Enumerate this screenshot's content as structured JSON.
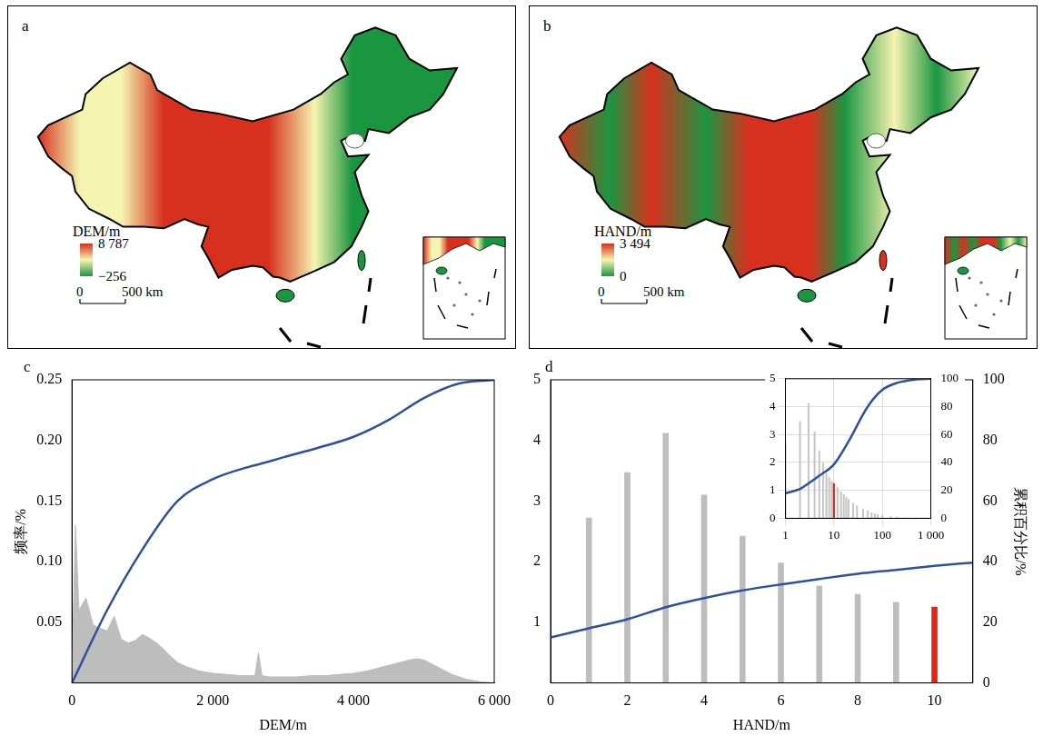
{
  "maps": [
    {
      "letter": "a",
      "colorbar": {
        "label": "DEM/m",
        "range": [
          -256,
          8787
        ],
        "ticks": [
          {
            "value": 8787,
            "label": "8 787"
          },
          {
            "value": -256,
            "label": "−256"
          }
        ],
        "colors": [
          "#1a9641",
          "#f5f3b0",
          "#d7301f"
        ]
      },
      "scale_bar": {
        "ticks": [
          {
            "value": 0,
            "label": "0"
          },
          {
            "value": 500,
            "label": "500 km"
          }
        ]
      }
    },
    {
      "letter": "b",
      "colorbar": {
        "label": "HAND/m",
        "range": [
          0,
          3494
        ],
        "ticks": [
          {
            "value": 3494,
            "label": "3 494"
          },
          {
            "value": 0,
            "label": "0"
          }
        ],
        "colors": [
          "#1a9641",
          "#f5f3b0",
          "#d7301f"
        ]
      },
      "scale_bar": {
        "ticks": [
          {
            "value": 0,
            "label": "0"
          },
          {
            "value": 500,
            "label": "500 km"
          }
        ]
      }
    }
  ],
  "chart_data": [
    {
      "letter": "c",
      "type": "line",
      "xlabel": "DEM/m",
      "ylabel": "频率/%",
      "xlim": [
        0,
        6000
      ],
      "xticks": [
        0,
        {
          "value": 2000,
          "label": "2 000"
        },
        {
          "value": 4000,
          "label": "4 000"
        },
        {
          "value": 6000,
          "label": "6 000"
        }
      ],
      "ylim": [
        0,
        0.25
      ],
      "yticks": [
        0.05,
        {
          "value": 0.1,
          "label": "0.10"
        },
        0.15,
        {
          "value": 0.2,
          "label": "0.20"
        },
        0.25
      ],
      "grid": false,
      "series": [
        {
          "type": "area",
          "color": "#bdbdbd",
          "x": [
            0,
            50,
            100,
            200,
            300,
            400,
            500,
            600,
            700,
            800,
            900,
            1000,
            1100,
            1200,
            1300,
            1400,
            1500,
            1600,
            1700,
            1800,
            1900,
            2000,
            2200,
            2400,
            2600,
            2650,
            2700,
            2800,
            3000,
            3200,
            3400,
            3600,
            3800,
            4000,
            4200,
            4400,
            4600,
            4800,
            4900,
            5000,
            5100,
            5200,
            5400,
            5600,
            5800,
            6000
          ],
          "values": [
            0.01,
            0.13,
            0.06,
            0.07,
            0.048,
            0.045,
            0.043,
            0.055,
            0.036,
            0.033,
            0.035,
            0.04,
            0.037,
            0.033,
            0.028,
            0.022,
            0.017,
            0.014,
            0.012,
            0.01,
            0.009,
            0.008,
            0.007,
            0.006,
            0.006,
            0.025,
            0.006,
            0.005,
            0.005,
            0.005,
            0.006,
            0.006,
            0.007,
            0.008,
            0.01,
            0.013,
            0.016,
            0.019,
            0.02,
            0.019,
            0.016,
            0.013,
            0.007,
            0.003,
            0.001,
            0
          ]
        },
        {
          "type": "line",
          "color": "#2f4fa0",
          "x": [
            0,
            500,
            1000,
            1500,
            2000,
            2500,
            2700,
            3000,
            3500,
            4000,
            4500,
            5000,
            5500,
            6000
          ],
          "values": [
            0,
            0.06,
            0.11,
            0.15,
            0.168,
            0.178,
            0.181,
            0.186,
            0.194,
            0.203,
            0.217,
            0.235,
            0.247,
            0.25
          ]
        }
      ]
    },
    {
      "letter": "d",
      "type": "bar",
      "xlabel": "HAND/m",
      "y2label": "累积百分比/%",
      "xlim": [
        0,
        11
      ],
      "xticks": [
        0,
        2,
        4,
        6,
        8,
        10
      ],
      "ylim": [
        0,
        5
      ],
      "yticks": [
        1,
        2,
        3,
        4,
        5
      ],
      "y2lim": [
        0,
        100
      ],
      "y2ticks": [
        0,
        20,
        40,
        60,
        80,
        100
      ],
      "grid": false,
      "series": [
        {
          "type": "bar",
          "x": [
            1,
            2,
            3,
            4,
            5,
            6,
            7,
            8,
            9,
            10
          ],
          "values": [
            2.72,
            3.47,
            4.12,
            3.1,
            2.42,
            1.98,
            1.6,
            1.46,
            1.33,
            1.25
          ],
          "colors": [
            "#bdbdbd",
            "#bdbdbd",
            "#bdbdbd",
            "#bdbdbd",
            "#bdbdbd",
            "#bdbdbd",
            "#bdbdbd",
            "#bdbdbd",
            "#bdbdbd",
            "#e0261b"
          ]
        },
        {
          "type": "line",
          "axis": "y2",
          "color": "#2f4fa0",
          "x": [
            0,
            1,
            2,
            3,
            4,
            5,
            6,
            7,
            8,
            9,
            10,
            11
          ],
          "values": [
            15,
            18,
            21,
            25,
            28,
            30.5,
            32.5,
            34.3,
            36,
            37.3,
            38.6,
            39.7
          ]
        }
      ]
    },
    {
      "type": "bar",
      "log": "x",
      "xlim": [
        1,
        1000
      ],
      "xticks": [
        1,
        10,
        100,
        {
          "value": 1000,
          "label": "1 000"
        }
      ],
      "ylim": [
        0,
        5
      ],
      "yticks": [
        0,
        1,
        2,
        3,
        4,
        5
      ],
      "y2lim": [
        0,
        100
      ],
      "y2ticks": [
        0,
        20,
        40,
        60,
        80,
        100
      ],
      "grid": true,
      "series": [
        {
          "type": "bar",
          "x": [
            1,
            2,
            3,
            4,
            5,
            6,
            7,
            8,
            9,
            10,
            12,
            14,
            16,
            18,
            20,
            25,
            30,
            40,
            50,
            60,
            70,
            80,
            100,
            150,
            200,
            300,
            500,
            700,
            1000
          ],
          "values": [
            2.72,
            3.47,
            4.12,
            3.1,
            2.42,
            1.98,
            1.6,
            1.46,
            1.33,
            1.25,
            1.1,
            0.95,
            0.85,
            0.75,
            0.68,
            0.55,
            0.45,
            0.33,
            0.26,
            0.2,
            0.17,
            0.14,
            0.1,
            0.06,
            0.04,
            0.02,
            0.01,
            0.005,
            0.002
          ],
          "colors": [
            "#c8c8c8",
            "#c8c8c8",
            "#c8c8c8",
            "#c8c8c8",
            "#c8c8c8",
            "#c8c8c8",
            "#c8c8c8",
            "#c8c8c8",
            "#c8c8c8",
            "#e0261b",
            "#c8c8c8",
            "#c8c8c8",
            "#c8c8c8",
            "#c8c8c8",
            "#c8c8c8",
            "#c8c8c8",
            "#c8c8c8",
            "#c8c8c8",
            "#c8c8c8",
            "#c8c8c8",
            "#c8c8c8",
            "#c8c8c8",
            "#c8c8c8",
            "#c8c8c8",
            "#c8c8c8",
            "#c8c8c8",
            "#c8c8c8",
            "#c8c8c8",
            "#c8c8c8"
          ]
        },
        {
          "type": "line",
          "axis": "y2",
          "color": "#2f4fa0",
          "x": [
            1,
            2,
            3,
            5,
            10,
            20,
            50,
            100,
            200,
            500,
            1000
          ],
          "values": [
            18,
            21,
            25,
            30.5,
            38.6,
            55,
            80,
            92,
            97,
            99.5,
            100
          ]
        }
      ]
    }
  ]
}
